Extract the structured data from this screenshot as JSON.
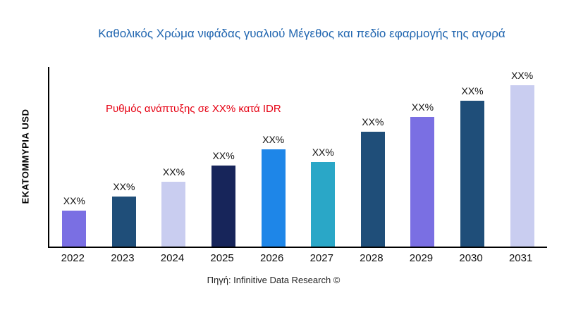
{
  "chart_data": {
    "type": "bar",
    "title": "Καθολικός Χρώμα νιφάδας γυαλιού Μέγεθος και πεδίο εφαρμογής της αγορά",
    "ylabel": "ΕΚΑΤΟΜΜΥΡΙΑ USD",
    "annotation": "Ρυθμός ανάπτυξης σε XX% κατά IDR",
    "source": "Πηγή: Infinitive Data Research ©",
    "categories": [
      "2022",
      "2023",
      "2024",
      "2025",
      "2026",
      "2027",
      "2028",
      "2029",
      "2030",
      "2031"
    ],
    "bar_labels": [
      "XX%",
      "XX%",
      "XX%",
      "XX%",
      "XX%",
      "XX%",
      "XX%",
      "XX%",
      "XX%",
      "XX%"
    ],
    "values": [
      20,
      28,
      36,
      45,
      54,
      47,
      64,
      72,
      81,
      90
    ],
    "value_note": "bar heights estimated in relative units; numeric axis values not shown in chart",
    "ylim": [
      0,
      100
    ],
    "grid": false,
    "legend": false,
    "colors": {
      "title": "#2166b0",
      "annotation": "#e60012",
      "axis": "#000000",
      "bars": [
        "#7a6fe3",
        "#1f4e79",
        "#c9cdf0",
        "#17255a",
        "#1e86e8",
        "#2aa7c7",
        "#1f4e79",
        "#7a6fe3",
        "#1f4e79",
        "#c9cdf0"
      ]
    }
  }
}
